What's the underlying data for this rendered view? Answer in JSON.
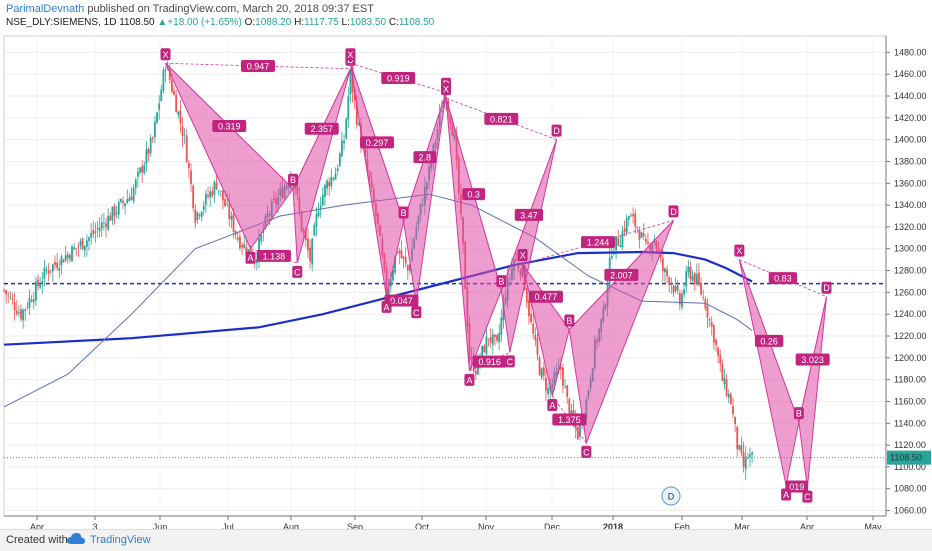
{
  "header": {
    "author": "ParimalDevnath",
    "published": "published on TradingView.com, March 20, 2018 09:37 EST",
    "symbol_line": "NSE_DLY:SIEMENS, 1D",
    "last": "1108.50",
    "change": "+18.00 (+1.65%)",
    "o_label": "O:",
    "o": "1088.20",
    "h_label": "H:",
    "h": "1117.75",
    "l_label": "L:",
    "l": "1083.50",
    "c_label": "C:",
    "c": "1108.50"
  },
  "footer": {
    "created": "Created with",
    "brand": "TradingView"
  },
  "colors": {
    "pattern_fill": "#e04da8",
    "pattern_line": "#d1399b",
    "label_bg": "#c2257f",
    "ma_long": "#1a2fc9",
    "ma_short": "#5b6fb5",
    "hline": "#1a2fc9",
    "up": "#26a69a",
    "down": "#ef5350"
  },
  "chart_data": {
    "type": "candlestick",
    "symbol": "NSE_DLY:SIEMENS",
    "interval": "1D",
    "ylim": [
      1055,
      1495
    ],
    "y_ticks": [
      1060,
      1080,
      1100,
      1120,
      1140,
      1160,
      1180,
      1200,
      1220,
      1240,
      1260,
      1280,
      1300,
      1320,
      1340,
      1360,
      1380,
      1400,
      1420,
      1440,
      1460,
      1480
    ],
    "last_price": "1108.50",
    "x_ticks": [
      "Apr",
      "3",
      "Jun",
      "Jul",
      "Aug",
      "Sep",
      "Oct",
      "Nov",
      "Dec",
      "2018",
      "Feb",
      "Mar",
      "Apr",
      "May"
    ],
    "horizontal_line": 1268,
    "price_path": [
      [
        0,
        1262
      ],
      [
        8,
        1240
      ],
      [
        20,
        1280
      ],
      [
        40,
        1310
      ],
      [
        60,
        1350
      ],
      [
        70,
        1400
      ],
      [
        76,
        1470
      ],
      [
        80,
        1440
      ],
      [
        85,
        1400
      ],
      [
        90,
        1330
      ],
      [
        100,
        1360
      ],
      [
        110,
        1310
      ],
      [
        118,
        1290
      ],
      [
        124,
        1330
      ],
      [
        130,
        1350
      ],
      [
        136,
        1370
      ],
      [
        140,
        1320
      ],
      [
        144,
        1290
      ],
      [
        148,
        1340
      ],
      [
        152,
        1360
      ],
      [
        156,
        1370
      ],
      [
        160,
        1400
      ],
      [
        163,
        1460
      ],
      [
        166,
        1420
      ],
      [
        170,
        1380
      ],
      [
        176,
        1320
      ],
      [
        180,
        1260
      ],
      [
        185,
        1300
      ],
      [
        190,
        1280
      ],
      [
        194,
        1320
      ],
      [
        200,
        1370
      ],
      [
        206,
        1430
      ],
      [
        208,
        1440
      ],
      [
        212,
        1400
      ],
      [
        216,
        1300
      ],
      [
        219,
        1200
      ],
      [
        222,
        1190
      ],
      [
        228,
        1220
      ],
      [
        232,
        1210
      ],
      [
        236,
        1260
      ],
      [
        240,
        1290
      ],
      [
        244,
        1280
      ],
      [
        248,
        1230
      ],
      [
        252,
        1190
      ],
      [
        256,
        1170
      ],
      [
        262,
        1190
      ],
      [
        266,
        1150
      ],
      [
        270,
        1130
      ],
      [
        274,
        1160
      ],
      [
        278,
        1210
      ],
      [
        282,
        1240
      ],
      [
        286,
        1300
      ],
      [
        290,
        1310
      ],
      [
        294,
        1330
      ],
      [
        298,
        1320
      ],
      [
        302,
        1300
      ],
      [
        306,
        1310
      ],
      [
        310,
        1280
      ],
      [
        314,
        1270
      ],
      [
        318,
        1250
      ],
      [
        322,
        1280
      ],
      [
        326,
        1270
      ],
      [
        330,
        1250
      ],
      [
        334,
        1220
      ],
      [
        338,
        1180
      ],
      [
        342,
        1160
      ],
      [
        345,
        1120
      ],
      [
        348,
        1100
      ],
      [
        350,
        1110
      ],
      [
        352,
        1108
      ]
    ],
    "moving_averages": [
      {
        "period": "long",
        "points": [
          [
            0,
            1212
          ],
          [
            60,
            1218
          ],
          [
            120,
            1228
          ],
          [
            150,
            1240
          ],
          [
            180,
            1255
          ],
          [
            210,
            1270
          ],
          [
            240,
            1285
          ],
          [
            270,
            1296
          ],
          [
            300,
            1297
          ],
          [
            315,
            1296
          ],
          [
            330,
            1290
          ],
          [
            340,
            1282
          ],
          [
            352,
            1270
          ]
        ]
      },
      {
        "period": "short",
        "points": [
          [
            0,
            1155
          ],
          [
            30,
            1185
          ],
          [
            60,
            1240
          ],
          [
            90,
            1300
          ],
          [
            130,
            1330
          ],
          [
            160,
            1340
          ],
          [
            200,
            1350
          ],
          [
            220,
            1340
          ],
          [
            250,
            1310
          ],
          [
            275,
            1275
          ],
          [
            300,
            1252
          ],
          [
            330,
            1250
          ],
          [
            345,
            1235
          ],
          [
            352,
            1225
          ]
        ]
      }
    ],
    "patterns": [
      {
        "points": [
          {
            "name": "X",
            "x": 76,
            "y": 1470
          },
          {
            "name": "A",
            "x": 116,
            "y": 1300
          },
          {
            "name": "B",
            "x": 136,
            "y": 1355
          },
          {
            "name": "C",
            "x": 138,
            "y": 1287
          },
          {
            "name": "D",
            "x": 163,
            "y": 1465
          }
        ],
        "ratios": [
          "0.319",
          "1.138",
          "2.357",
          "0.947"
        ]
      },
      {
        "points": [
          {
            "name": "X",
            "x": 163,
            "y": 1470
          },
          {
            "name": "A",
            "x": 180,
            "y": 1255
          },
          {
            "name": "B",
            "x": 188,
            "y": 1325
          },
          {
            "name": "C",
            "x": 194,
            "y": 1250
          },
          {
            "name": "D",
            "x": 208,
            "y": 1443
          }
        ],
        "ratios": [
          "0.297",
          "0.047",
          "2.8",
          "0.919"
        ]
      },
      {
        "points": [
          {
            "name": "X",
            "x": 208,
            "y": 1438
          },
          {
            "name": "A",
            "x": 219,
            "y": 1188
          },
          {
            "name": "B",
            "x": 234,
            "y": 1262
          },
          {
            "name": "C",
            "x": 238,
            "y": 1205
          },
          {
            "name": "D",
            "x": 260,
            "y": 1400
          }
        ],
        "ratios": [
          "0.3",
          "0.916",
          "3.47",
          "0.821"
        ]
      },
      {
        "points": [
          {
            "name": "X",
            "x": 244,
            "y": 1286
          },
          {
            "name": "A",
            "x": 258,
            "y": 1165
          },
          {
            "name": "B",
            "x": 266,
            "y": 1226
          },
          {
            "name": "C",
            "x": 274,
            "y": 1122
          },
          {
            "name": "D",
            "x": 315,
            "y": 1326
          }
        ],
        "ratios": [
          "0.477",
          "1.375",
          "2.007",
          "1.244"
        ]
      },
      {
        "points": [
          {
            "name": "X",
            "x": 346,
            "y": 1290
          },
          {
            "name": "A",
            "x": 368,
            "y": 1083
          },
          {
            "name": "B",
            "x": 374,
            "y": 1141
          },
          {
            "name": "C",
            "x": 378,
            "y": 1081
          },
          {
            "name": "D",
            "x": 387,
            "y": 1256
          }
        ],
        "ratios": [
          "0.26",
          "019",
          "3.023",
          "0.83"
        ]
      }
    ],
    "time_marker": "D"
  }
}
